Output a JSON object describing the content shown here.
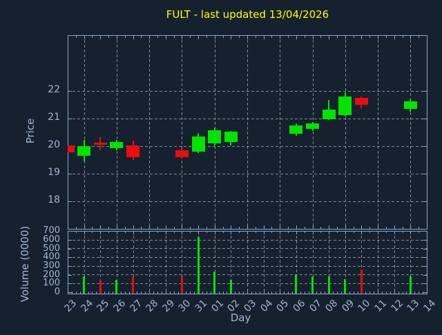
{
  "title": "FULT - last updated 13/04/2026",
  "colors": {
    "background": "#16212F",
    "spine": "#8AA8CB",
    "tick_label": "#A0B7D4",
    "grid": "#A9B0B8",
    "title": "#FFFF00",
    "up": "#00E400",
    "down": "#EA0D0D"
  },
  "chart_data": [
    {
      "type": "candlestick",
      "title": "FULT - last updated 13/04/2026",
      "ylabel": "Price",
      "yticks": [
        18,
        19,
        20,
        21,
        22
      ],
      "ylim": [
        16.98,
        24.02
      ],
      "grid": "dashed, horizontal at each price unit, vertical at every other day",
      "x_categories": [
        "23",
        "24",
        "25",
        "26",
        "27",
        "28",
        "29",
        "30",
        "31",
        "01",
        "02",
        "03",
        "04",
        "05",
        "06",
        "07",
        "08",
        "09",
        "10",
        "11",
        "12",
        "13",
        "14"
      ],
      "series": [
        {
          "day": "23",
          "open": 20.03,
          "high": 20.03,
          "low": 19.78,
          "close": 19.78
        },
        {
          "day": "24",
          "open": 19.66,
          "high": 20.23,
          "low": 19.44,
          "close": 19.99
        },
        {
          "day": "25",
          "open": 20.13,
          "high": 20.33,
          "low": 19.86,
          "close": 20.05
        },
        {
          "day": "26",
          "open": 19.92,
          "high": 20.22,
          "low": 19.85,
          "close": 20.15
        },
        {
          "day": "27",
          "open": 20.02,
          "high": 20.2,
          "low": 19.51,
          "close": 19.61
        },
        {
          "day": "30",
          "open": 19.84,
          "high": 19.93,
          "low": 19.55,
          "close": 19.59
        },
        {
          "day": "31",
          "open": 19.8,
          "high": 20.47,
          "low": 19.74,
          "close": 20.34
        },
        {
          "day": "01",
          "open": 20.09,
          "high": 20.68,
          "low": 20.03,
          "close": 20.58
        },
        {
          "day": "02",
          "open": 20.15,
          "high": 20.55,
          "low": 20.03,
          "close": 20.53
        },
        {
          "day": "06",
          "open": 20.44,
          "high": 20.83,
          "low": 20.38,
          "close": 20.76
        },
        {
          "day": "07",
          "open": 20.62,
          "high": 20.88,
          "low": 20.55,
          "close": 20.82
        },
        {
          "day": "08",
          "open": 20.98,
          "high": 21.68,
          "low": 20.95,
          "close": 21.32
        },
        {
          "day": "09",
          "open": 21.12,
          "high": 21.95,
          "low": 21.07,
          "close": 21.8
        },
        {
          "day": "10",
          "open": 21.76,
          "high": 21.8,
          "low": 21.38,
          "close": 21.51
        },
        {
          "day": "13",
          "open": 21.35,
          "high": 21.7,
          "low": 21.25,
          "close": 21.63
        }
      ]
    },
    {
      "type": "bar",
      "ylabel": "Volume (0000)",
      "xlabel": "Day",
      "yticks": [
        0,
        100,
        200,
        300,
        400,
        500,
        600,
        700
      ],
      "ylim": [
        0,
        700
      ],
      "grid": "dashed, horizontal at each 100, vertical at every day",
      "x_categories": [
        "23",
        "24",
        "25",
        "26",
        "27",
        "28",
        "29",
        "30",
        "31",
        "01",
        "02",
        "03",
        "04",
        "05",
        "06",
        "07",
        "08",
        "09",
        "10",
        "11",
        "12",
        "13",
        "14"
      ],
      "values": [
        {
          "day": "24",
          "volume": 185
        },
        {
          "day": "25",
          "volume": 145
        },
        {
          "day": "26",
          "volume": 145
        },
        {
          "day": "27",
          "volume": 185
        },
        {
          "day": "30",
          "volume": 185
        },
        {
          "day": "31",
          "volume": 630
        },
        {
          "day": "01",
          "volume": 235
        },
        {
          "day": "02",
          "volume": 145
        },
        {
          "day": "06",
          "volume": 200
        },
        {
          "day": "07",
          "volume": 185
        },
        {
          "day": "08",
          "volume": 185
        },
        {
          "day": "09",
          "volume": 150
        },
        {
          "day": "10",
          "volume": 260
        },
        {
          "day": "13",
          "volume": 185
        }
      ]
    }
  ]
}
